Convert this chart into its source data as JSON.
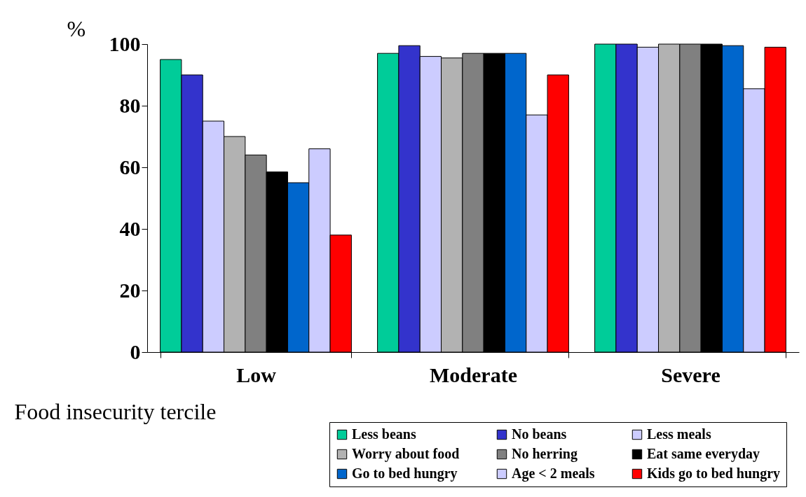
{
  "chart_data": {
    "type": "bar",
    "xlabel": "Food insecurity tercile",
    "ylabel": "%",
    "categories": [
      "Low",
      "Moderate",
      "Severe"
    ],
    "series": [
      {
        "name": "Less beans",
        "color": "#00cc99",
        "values": [
          95,
          97,
          100
        ]
      },
      {
        "name": "No beans",
        "color": "#3333cc",
        "values": [
          90,
          99.5,
          100
        ]
      },
      {
        "name": "Less meals",
        "color": "#ccccff",
        "values": [
          75,
          96,
          99
        ]
      },
      {
        "name": "Worry about food",
        "color": "#b2b2b2",
        "values": [
          70,
          95.5,
          100
        ]
      },
      {
        "name": "No herring",
        "color": "#808080",
        "values": [
          64,
          97,
          100
        ]
      },
      {
        "name": "Eat same everyday",
        "color": "#000000",
        "values": [
          58.5,
          97,
          100
        ]
      },
      {
        "name": "Go to bed hungry",
        "color": "#0066cc",
        "values": [
          55,
          97,
          99.5
        ]
      },
      {
        "name": "Age < 2 meals",
        "color": "#ccccff",
        "values": [
          66,
          77,
          85.5
        ]
      },
      {
        "name": "Kids go to bed hungry",
        "color": "#ff0000",
        "values": [
          38,
          90,
          99
        ]
      }
    ],
    "ylim": [
      0,
      100
    ],
    "yticks": [
      0,
      20,
      40,
      60,
      80,
      100
    ],
    "legend": "bottom"
  }
}
